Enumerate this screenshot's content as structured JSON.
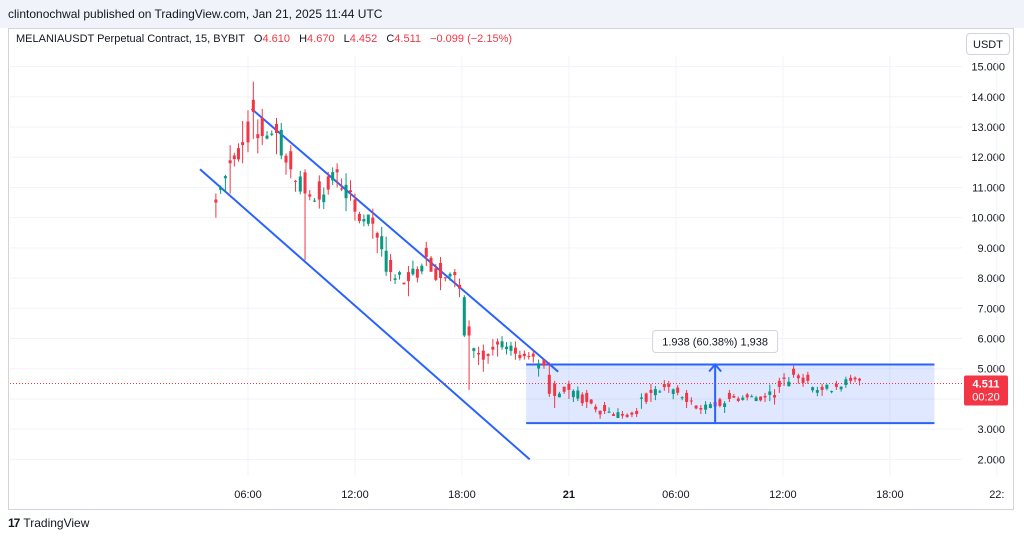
{
  "header": {
    "published": "clintonochwal published on TradingView.com, Jan 21, 2025 11:44 UTC"
  },
  "legend": {
    "symbol": "MELANIAUSDT Perpetual Contract, 15, BYBIT",
    "o_label": "O",
    "o": "4.610",
    "h_label": "H",
    "h": "4.670",
    "l_label": "L",
    "l": "4.452",
    "c_label": "C",
    "c": "4.511",
    "change": "−0.099 (−2.15%)"
  },
  "price_scale": {
    "unit": "USDT",
    "current_price": "4.511",
    "countdown": "00:20"
  },
  "measure_label": "1.938 (60.38%) 1,938",
  "footer": {
    "brand": "TradingView"
  },
  "colors": {
    "up": "#089981",
    "down": "#f23645",
    "line": "#2962ff",
    "price_line": "#f23645"
  },
  "chart_data": {
    "type": "candlestick",
    "y_axis": {
      "ticks": [
        "2.000",
        "3.000",
        "4.000",
        "5.000",
        "6.000",
        "7.000",
        "8.000",
        "9.000",
        "10.000",
        "11.000",
        "12.000",
        "13.000",
        "14.000",
        "15.000"
      ],
      "range": [
        1.45,
        15.35
      ]
    },
    "x_axis": {
      "ticks": [
        "06:00",
        "12:00",
        "18:00",
        "21",
        "06:00",
        "12:00",
        "18:00",
        "22:"
      ],
      "range_hours": [
        0,
        48
      ]
    },
    "anchors": [
      [
        4.2,
        10.5,
        10.6,
        10.0,
        10.8
      ],
      [
        5.0,
        11.8,
        11.9,
        10.8,
        12.4
      ],
      [
        5.7,
        12.4,
        12.5,
        11.8,
        13.2
      ],
      [
        6.3,
        13.5,
        13.9,
        12.6,
        14.5
      ],
      [
        6.8,
        12.7,
        13.3,
        12.4,
        13.6
      ],
      [
        7.6,
        12.8,
        13.1,
        12.1,
        13.3
      ],
      [
        8.4,
        11.6,
        12.2,
        11.3,
        12.4
      ],
      [
        9.2,
        10.8,
        11.5,
        8.6,
        11.6
      ],
      [
        10.0,
        10.6,
        11.2,
        10.3,
        11.4
      ],
      [
        11.0,
        11.5,
        11.6,
        11.0,
        11.8
      ],
      [
        12.0,
        10.2,
        10.6,
        9.9,
        10.8
      ],
      [
        13.0,
        9.8,
        10.0,
        9.3,
        10.3
      ],
      [
        14.0,
        8.2,
        8.6,
        7.9,
        8.8
      ],
      [
        15.0,
        7.9,
        8.2,
        7.4,
        8.4
      ],
      [
        16.0,
        8.7,
        9.0,
        8.4,
        9.2
      ],
      [
        16.8,
        8.0,
        8.5,
        7.6,
        8.7
      ],
      [
        17.6,
        8.1,
        8.2,
        7.7,
        8.3
      ],
      [
        18.4,
        6.1,
        6.4,
        4.3,
        6.6
      ],
      [
        19.2,
        5.3,
        5.6,
        4.9,
        5.8
      ],
      [
        20.0,
        5.8,
        5.9,
        5.4,
        6.0
      ],
      [
        21.0,
        5.5,
        5.7,
        5.3,
        5.9
      ],
      [
        22.0,
        5.4,
        5.5,
        5.2,
        5.6
      ],
      [
        22.6,
        5.1,
        5.3,
        5.0,
        5.3
      ],
      [
        23.2,
        4.1,
        4.5,
        3.7,
        4.6
      ],
      [
        24.0,
        4.3,
        4.5,
        4.0,
        4.6
      ],
      [
        25.0,
        3.9,
        4.2,
        3.7,
        4.3
      ],
      [
        26.0,
        3.6,
        3.8,
        3.5,
        3.9
      ],
      [
        27.0,
        3.45,
        3.5,
        3.35,
        3.6
      ],
      [
        27.8,
        3.5,
        3.6,
        3.4,
        3.7
      ],
      [
        28.6,
        4.2,
        4.3,
        3.9,
        4.5
      ],
      [
        29.6,
        4.4,
        4.5,
        4.2,
        4.6
      ],
      [
        30.6,
        3.9,
        4.2,
        3.7,
        4.3
      ],
      [
        31.4,
        3.65,
        3.7,
        3.5,
        3.8
      ],
      [
        32.2,
        3.75,
        3.9,
        3.6,
        4.0
      ],
      [
        33.0,
        4.0,
        4.2,
        3.9,
        4.3
      ],
      [
        34.0,
        4.05,
        4.15,
        3.95,
        4.2
      ],
      [
        35.0,
        4.05,
        4.1,
        3.9,
        4.2
      ],
      [
        35.8,
        4.4,
        4.6,
        4.2,
        4.7
      ],
      [
        36.6,
        4.8,
        5.0,
        4.7,
        5.1
      ],
      [
        37.4,
        4.6,
        4.8,
        4.5,
        4.9
      ],
      [
        38.2,
        4.3,
        4.4,
        4.1,
        4.5
      ],
      [
        39.0,
        4.4,
        4.5,
        4.3,
        4.6
      ],
      [
        39.8,
        4.6,
        4.7,
        4.5,
        4.8
      ],
      [
        40.3,
        4.61,
        4.67,
        4.45,
        4.7
      ]
    ],
    "overlays": {
      "channel_upper": {
        "from": [
          6.2,
          13.6
        ],
        "to": [
          23.4,
          4.9
        ]
      },
      "channel_lower": {
        "from": [
          0,
          11.6
        ],
        "to": [
          21.8,
          2.0
        ]
      },
      "range_box": {
        "x_from": 21.6,
        "x_to": 44.5,
        "y_low": 3.2,
        "y_high": 5.14
      },
      "measure_arrow_x": 32.2,
      "current_price": 4.511
    }
  }
}
